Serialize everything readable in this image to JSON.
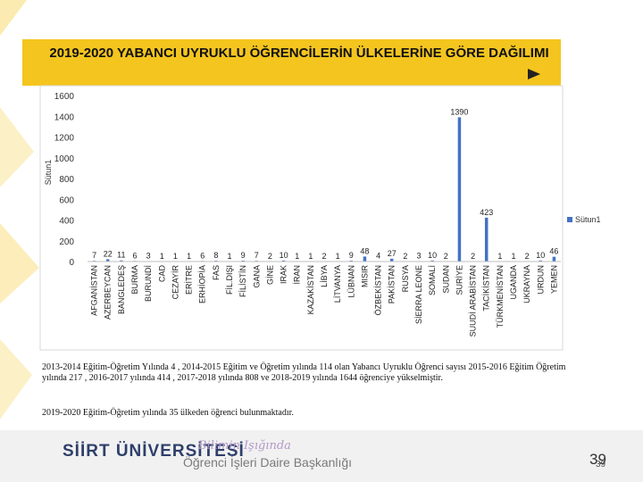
{
  "title": "2019-2020 YABANCI UYRUKLU ÖĞRENCİLERİN ÜLKELERİNE GÖRE DAĞILIMI",
  "colors": {
    "accent": "#f4c51e",
    "bar": "#4472c4",
    "footer": "#2e3f6a"
  },
  "chart_data": {
    "type": "bar",
    "title": "",
    "ylabel": "Sütun1",
    "ylim": [
      0,
      1600
    ],
    "yticks": [
      "0",
      "200",
      "400",
      "600",
      "800",
      "1000",
      "1200",
      "1400",
      "1600"
    ],
    "legend": "Sütun1",
    "legend_position": "right",
    "categories": [
      "AFGANİSTAN",
      "AZERBEYCAN",
      "BANGLEDEŞ",
      "BURMA",
      "BURUNDİ",
      "CAD",
      "CEZAYİR",
      "ERİTRE",
      "ERHİOPİA",
      "FAS",
      "FİL.DIŞI",
      "FİLİSTİN",
      "GANA",
      "GİNE",
      "IRAK",
      "İRAN",
      "KAZAKİSTAN",
      "LİBYA",
      "LİTVANYA",
      "LÜBNAN",
      "MISIR",
      "ÖZBEKİSTAN",
      "PAKİSTAN",
      "RUSYA",
      "SİERRA LEONE",
      "SOMALİ",
      "SUDAN",
      "SURİYE",
      "SUUDİ ARABİSTAN",
      "TACİKİSTAN",
      "TÜRKMENİSTAN",
      "UGANDA",
      "UKRAYNA",
      "URDUN",
      "YEMEN"
    ],
    "values": [
      7,
      22,
      11,
      6,
      3,
      1,
      1,
      1,
      6,
      8,
      1,
      9,
      7,
      2,
      10,
      1,
      1,
      2,
      1,
      9,
      48,
      4,
      27,
      2,
      3,
      10,
      2,
      1390,
      2,
      423,
      1,
      1,
      2,
      10,
      46
    ],
    "data_labels": [
      "7",
      "22",
      "11",
      "6",
      "3",
      "1",
      "1",
      "1",
      "6",
      "8",
      "1",
      "9",
      "7",
      "2",
      "10",
      "1",
      "1",
      "2",
      "1",
      "9",
      "48",
      "4",
      "27",
      "2",
      "3",
      "10",
      "2",
      "1390",
      "2",
      "423",
      "1",
      "1",
      "2",
      "10",
      "46"
    ]
  },
  "body": {
    "paragraph1": "2013-2014 Eğitim-Öğretim Yılında 4 , 2014-2015 Eğitim ve Öğretim yılında 114 olan Yabancı Uyruklu Öğrenci sayısı 2015-2016 Eğitim Öğretim yılında 217 , 2016-2017 yılında 414 , 2017-2018 yılında 808 ve 2018-2019 yılında 1644 öğrenciye yükselmiştir.",
    "paragraph2": "2019-2020 Eğitim-Öğretim yılında 35 ülkeden öğrenci bulunmaktadır."
  },
  "footer": {
    "university": "SİİRT ÜNİVERSİTESİ",
    "slogan": "Bilimin Işığında",
    "office": "Öğrenci İşleri Daire Başkanlığı",
    "page_number": "39",
    "page_number_small": "39"
  }
}
